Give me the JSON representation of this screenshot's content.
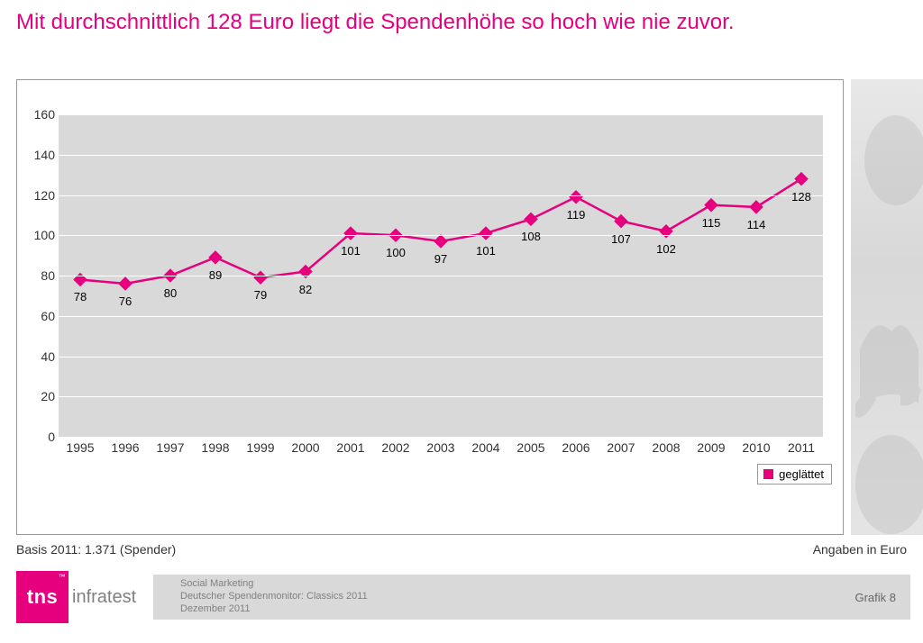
{
  "title": "Mit durchschnittlich 128 Euro liegt die Spendenhöhe so hoch wie nie zuvor.",
  "chart": {
    "type": "line",
    "series_name": "geglättet",
    "years": [
      1995,
      1996,
      1997,
      1998,
      1999,
      2000,
      2001,
      2002,
      2003,
      2004,
      2005,
      2006,
      2007,
      2008,
      2009,
      2010,
      2011
    ],
    "values": [
      78,
      76,
      80,
      89,
      79,
      82,
      101,
      100,
      97,
      101,
      108,
      119,
      107,
      102,
      115,
      114,
      128
    ],
    "ylim": [
      0,
      160
    ],
    "ytick_step": 20,
    "line_color": "#e6007e",
    "line_width": 2.5,
    "marker": "diamond",
    "marker_size": 11,
    "marker_color": "#e6007e",
    "plot_background": "#d9d9d9",
    "grid_color": "#ffffff",
    "axis_font_size": 14,
    "data_label_font_size": 13,
    "data_label_color": "#000000",
    "legend_position": "bottom-right",
    "legend_border": "#999999"
  },
  "basis": {
    "left": "Basis 2011: 1.371 (Spender)",
    "right": "Angaben in Euro"
  },
  "footer": {
    "line1": "Social Marketing",
    "line2": "Deutscher Spendenmonitor: Classics 2011",
    "line3": "Dezember 2011",
    "grafik": "Grafik 8"
  },
  "logo": {
    "main": "tns",
    "tm": "™",
    "suffix": "infratest",
    "box_color": "#e6007e",
    "suffix_color": "#808080"
  },
  "colors": {
    "title": "#e6007e",
    "page_bg": "#ffffff",
    "footer_bar": "#d9d9d9",
    "side_panel": "#e0e0e0"
  }
}
